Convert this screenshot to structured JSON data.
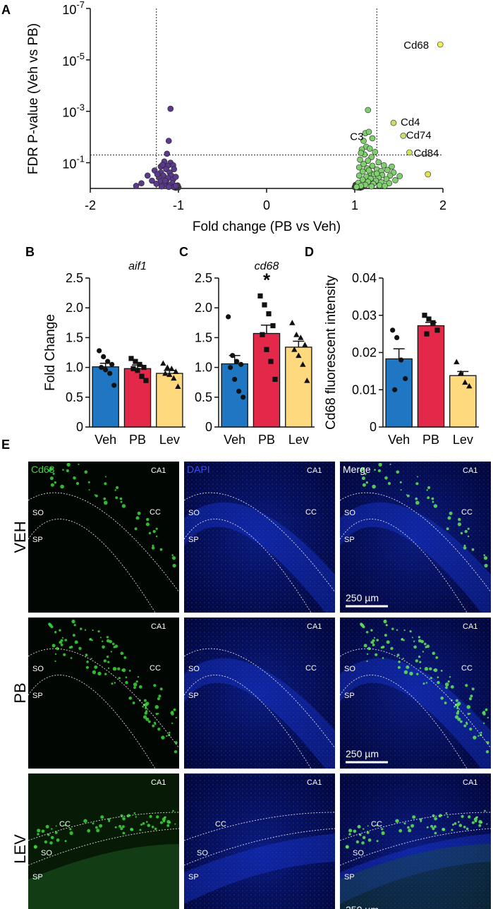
{
  "panels": {
    "A": "A",
    "B": "B",
    "C": "C",
    "D": "D",
    "E": "E"
  },
  "chart_data": [
    {
      "type": "scatter",
      "id": "volcano",
      "xlabel": "Fold change (PB vs Veh)",
      "ylabel": "FDR P-value (Veh vs PB)",
      "xlim": [
        -2,
        2
      ],
      "ylim_log10": [
        0,
        7
      ],
      "xticks": [
        "-2",
        "-1",
        "0",
        "1",
        "2"
      ],
      "yticks": [
        {
          "base": "10",
          "exp": "-1",
          "value": 1
        },
        {
          "base": "10",
          "exp": "-3",
          "value": 3
        },
        {
          "base": "10",
          "exp": "-5",
          "value": 5
        },
        {
          "base": "10",
          "exp": "-7",
          "value": 7
        }
      ],
      "thresholds": {
        "x": [
          -1.25,
          1.25
        ],
        "neglog10_p": 1.3
      },
      "colors": {
        "down": "#5b3a8c",
        "up": "#7fcf6e",
        "highlight": "#e2e34e",
        "gray": "#444444"
      },
      "labeled_genes": [
        {
          "name": "Cd68",
          "fc": 1.97,
          "neglog10_p": 5.6,
          "color": "#eded55"
        },
        {
          "name": "Cd4",
          "fc": 1.44,
          "neglog10_p": 2.55,
          "color": "#c8e06b"
        },
        {
          "name": "Cd74",
          "fc": 1.55,
          "neglog10_p": 2.05,
          "color": "#c4e070"
        },
        {
          "name": "Cd84",
          "fc": 1.62,
          "neglog10_p": 1.4,
          "color": "#d0e260"
        },
        {
          "name": "C3",
          "fc": 1.17,
          "neglog10_p": 1.55,
          "color": "#7fcf6e"
        }
      ],
      "extra_highlight_points": [
        {
          "fc": 1.83,
          "neglog10_p": 0.55
        }
      ],
      "down_points": [
        [
          -1.09,
          3.1
        ],
        [
          -1.11,
          1.85
        ],
        [
          -1.13,
          1.35
        ],
        [
          -1.16,
          1.05
        ],
        [
          -1.09,
          1.0
        ],
        [
          -1.2,
          0.85
        ],
        [
          -1.12,
          0.88
        ],
        [
          -1.06,
          0.9
        ],
        [
          -1.14,
          0.75
        ],
        [
          -1.05,
          0.75
        ],
        [
          -1.27,
          0.7
        ],
        [
          -1.2,
          0.62
        ],
        [
          -1.1,
          0.62
        ],
        [
          -1.17,
          0.5
        ],
        [
          -1.08,
          0.5
        ],
        [
          -1.35,
          0.5
        ],
        [
          -1.22,
          0.42
        ],
        [
          -1.12,
          0.4
        ],
        [
          -1.06,
          0.35
        ],
        [
          -1.3,
          0.3
        ],
        [
          -1.2,
          0.28
        ],
        [
          -1.14,
          0.25
        ],
        [
          -1.07,
          0.2
        ],
        [
          -1.25,
          0.18
        ],
        [
          -1.16,
          0.15
        ],
        [
          -1.1,
          0.12
        ],
        [
          -1.42,
          0.2
        ],
        [
          -1.48,
          0.1
        ],
        [
          -1.19,
          0.08
        ],
        [
          -1.05,
          0.06
        ],
        [
          -1.03,
          0.1
        ],
        [
          -1.11,
          0.06
        ],
        [
          -1.15,
          0.3
        ],
        [
          -1.24,
          0.55
        ],
        [
          -1.03,
          0.45
        ],
        [
          -1.18,
          0.92
        ]
      ],
      "up_points": [
        [
          1.15,
          3.05
        ],
        [
          1.12,
          2.15
        ],
        [
          1.16,
          2.2
        ],
        [
          1.1,
          1.85
        ],
        [
          1.2,
          1.95
        ],
        [
          1.13,
          1.62
        ],
        [
          1.08,
          1.52
        ],
        [
          1.23,
          1.42
        ],
        [
          1.11,
          1.32
        ],
        [
          1.19,
          1.22
        ],
        [
          1.06,
          1.12
        ],
        [
          1.15,
          1.08
        ],
        [
          1.27,
          1.02
        ],
        [
          1.1,
          0.95
        ],
        [
          1.2,
          0.88
        ],
        [
          1.33,
          0.9
        ],
        [
          1.05,
          0.82
        ],
        [
          1.14,
          0.78
        ],
        [
          1.25,
          0.74
        ],
        [
          1.3,
          0.68
        ],
        [
          1.37,
          0.72
        ],
        [
          1.09,
          0.66
        ],
        [
          1.18,
          0.6
        ],
        [
          1.44,
          0.62
        ],
        [
          1.22,
          0.55
        ],
        [
          1.31,
          0.52
        ],
        [
          1.4,
          0.5
        ],
        [
          1.05,
          0.5
        ],
        [
          1.13,
          0.46
        ],
        [
          1.27,
          0.42
        ],
        [
          1.51,
          0.48
        ],
        [
          1.18,
          0.38
        ],
        [
          1.36,
          0.36
        ],
        [
          1.09,
          0.34
        ],
        [
          1.24,
          0.3
        ],
        [
          1.46,
          0.32
        ],
        [
          1.15,
          0.26
        ],
        [
          1.3,
          0.24
        ],
        [
          1.04,
          0.22
        ],
        [
          1.21,
          0.18
        ],
        [
          1.39,
          0.2
        ],
        [
          1.12,
          0.14
        ],
        [
          1.28,
          0.12
        ],
        [
          1.07,
          0.1
        ],
        [
          1.19,
          0.08
        ],
        [
          1.34,
          0.1
        ],
        [
          1.02,
          0.06
        ],
        [
          1.25,
          0.58
        ],
        [
          1.16,
          0.7
        ],
        [
          1.42,
          0.85
        ],
        [
          1.07,
          1.38
        ]
      ],
      "gray_points": [
        [
          1.0,
          0.05
        ],
        [
          1.02,
          0.1
        ],
        [
          1.03,
          0.04
        ],
        [
          1.05,
          0.07
        ],
        [
          1.06,
          0.03
        ],
        [
          1.08,
          0.05
        ],
        [
          1.01,
          0.14
        ],
        [
          1.04,
          0.18
        ],
        [
          -1.0,
          0.04
        ],
        [
          -1.02,
          0.07
        ],
        [
          -1.03,
          0.03
        ],
        [
          -1.05,
          0.05
        ],
        [
          -1.01,
          0.12
        ],
        [
          -1.04,
          0.09
        ]
      ]
    },
    {
      "type": "bar",
      "id": "aif1",
      "title": "aif1",
      "ylabel": "Fold Change",
      "categories": [
        "Veh",
        "PB",
        "Lev"
      ],
      "values": [
        1.01,
        0.98,
        0.9
      ],
      "errors": [
        0.06,
        0.06,
        0.05
      ],
      "colors": [
        "#1f77c4",
        "#e3284a",
        "#fed97d"
      ],
      "markers": [
        "circle",
        "square",
        "triangle"
      ],
      "ylim": [
        0,
        2.5
      ],
      "yticks": [
        "0",
        "0.5",
        "1.0",
        "1.5",
        "2.0",
        "2.5"
      ],
      "points": [
        [
          1.28,
          1.18,
          1.1,
          1.05,
          1.0,
          0.96,
          0.9,
          0.7
        ],
        [
          1.15,
          1.1,
          1.05,
          1.0,
          0.98,
          0.95,
          0.85,
          0.78
        ],
        [
          1.07,
          1.0,
          0.98,
          0.93,
          0.9,
          0.88,
          0.82,
          0.68
        ]
      ]
    },
    {
      "type": "bar",
      "id": "cd68",
      "title": "cd68",
      "ylabel": "",
      "categories": [
        "Veh",
        "PB",
        "Lev"
      ],
      "values": [
        1.06,
        1.57,
        1.34
      ],
      "errors": [
        0.14,
        0.14,
        0.1
      ],
      "colors": [
        "#1f77c4",
        "#e3284a",
        "#fed97d"
      ],
      "markers": [
        "circle",
        "square",
        "triangle"
      ],
      "significance": [
        "",
        "*",
        ""
      ],
      "ylim": [
        0,
        2.5
      ],
      "yticks": [
        "0",
        "0.5",
        "1.0",
        "1.5",
        "2.0",
        "2.5"
      ],
      "points": [
        [
          1.85,
          1.2,
          1.1,
          1.05,
          1.0,
          0.8,
          0.6,
          0.5
        ],
        [
          2.2,
          2.05,
          1.9,
          1.7,
          1.55,
          1.3,
          1.1,
          0.8
        ],
        [
          1.75,
          1.55,
          1.5,
          1.38,
          1.3,
          1.2,
          1.05,
          0.78
        ]
      ]
    },
    {
      "type": "bar",
      "id": "cd68_intensity",
      "title": "",
      "ylabel": "Cd68 fluorescent intensity",
      "categories": [
        "Veh",
        "PB",
        "Lev"
      ],
      "values": [
        0.0183,
        0.0272,
        0.0138
      ],
      "errors": [
        0.0027,
        0.0009,
        0.0011
      ],
      "colors": [
        "#1f77c4",
        "#e3284a",
        "#fed97d"
      ],
      "markers": [
        "circle",
        "square",
        "triangle"
      ],
      "ylim": [
        0,
        0.04
      ],
      "yticks": [
        "0",
        "0.01",
        "0.02",
        "0.03",
        "0.04"
      ],
      "points": [
        [
          0.026,
          0.024,
          0.018,
          0.013,
          0.01
        ],
        [
          0.03,
          0.029,
          0.028,
          0.026,
          0.025
        ],
        [
          0.0175,
          0.0145,
          0.012,
          0.011
        ]
      ]
    }
  ],
  "micrographs": {
    "rows": [
      {
        "label": "VEH",
        "tint": "veh"
      },
      {
        "label": "PB",
        "tint": "pb"
      },
      {
        "label": "LEV",
        "tint": "lev"
      }
    ],
    "channels": [
      {
        "name": "Cd68",
        "color": "#3ad83a"
      },
      {
        "name": "DAPI",
        "color": "#3a4fe8"
      },
      {
        "name": "Merge",
        "color": "#ffffff"
      }
    ],
    "region_labels": {
      "ca1": "CA1",
      "cc": "CC",
      "so": "SO",
      "sp": "SP"
    },
    "scale_bar": "250 µm"
  }
}
